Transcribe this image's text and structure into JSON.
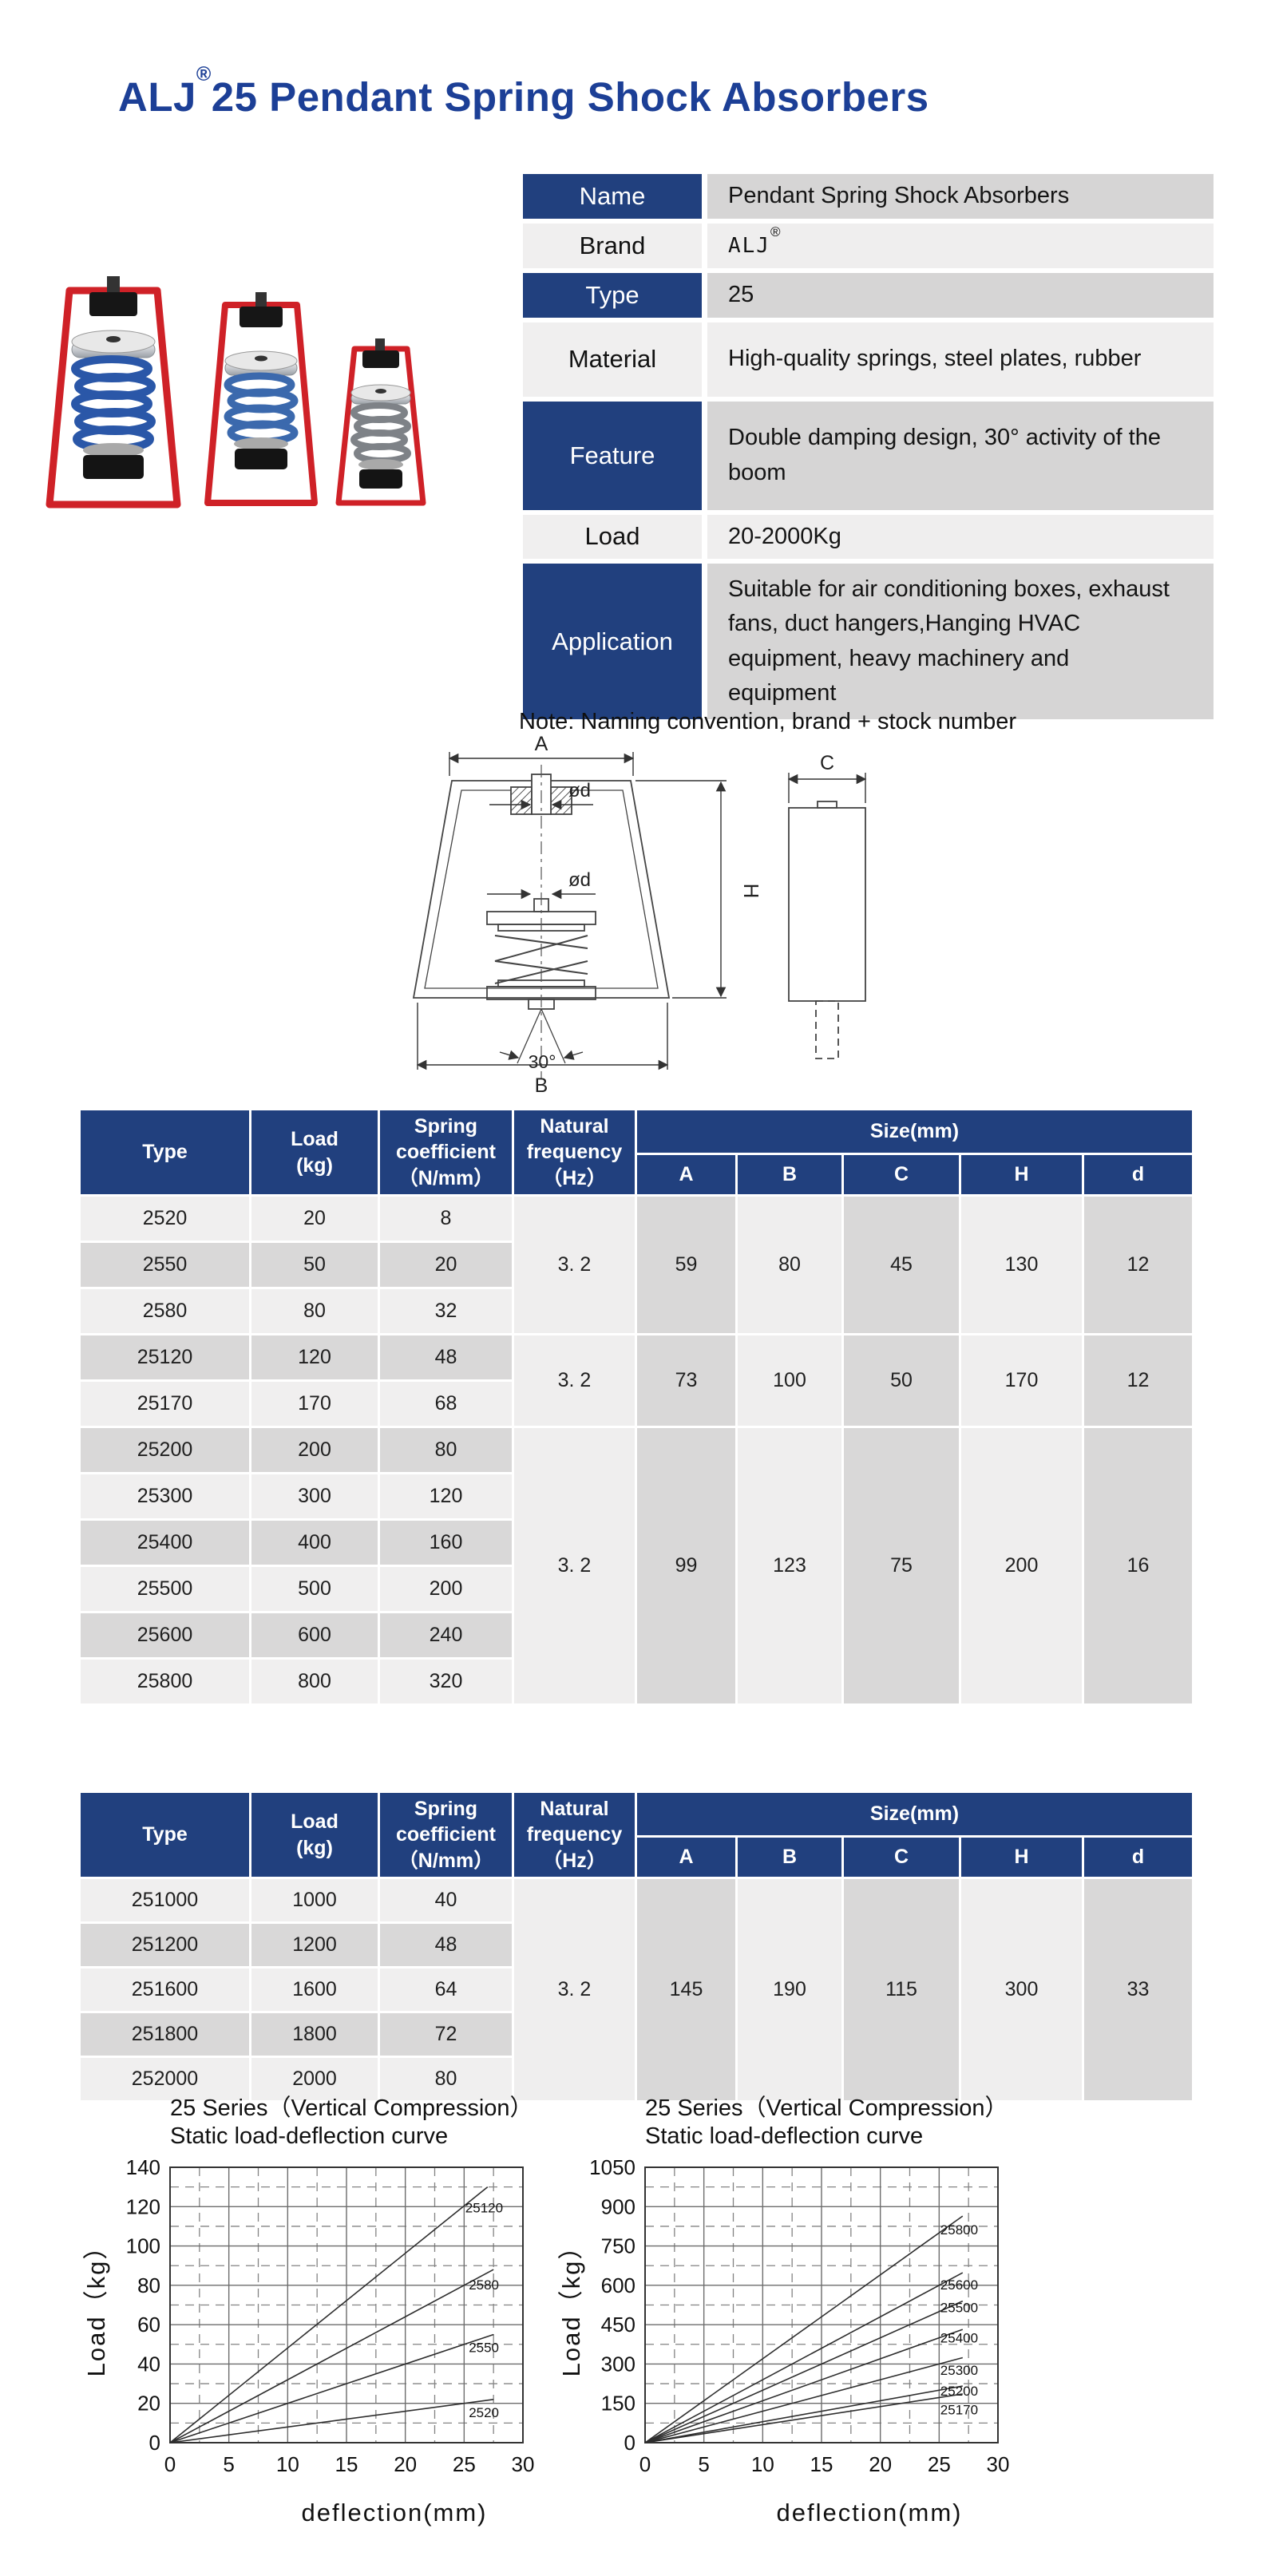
{
  "title": {
    "brand": "ALJ",
    "reg": "®",
    "rest": "25 Pendant Spring Shock Absorbers"
  },
  "info_table": {
    "rows": [
      {
        "label": "Name",
        "value": "Pendant Spring Shock Absorbers",
        "blue": true
      },
      {
        "label": "Brand",
        "value": "ALJ",
        "value_sup": "®",
        "blue": false,
        "mono": true
      },
      {
        "label": "Type",
        "value": "25",
        "blue": true
      },
      {
        "label": "Material",
        "value": "High-quality springs, steel plates, rubber",
        "blue": false
      },
      {
        "label": "Feature",
        "value": "Double damping design, 30° activity of the boom",
        "blue": true
      },
      {
        "label": "Load",
        "value": "20-2000Kg",
        "blue": false
      },
      {
        "label": "Application",
        "value": "Suitable for air conditioning boxes, exhaust fans, duct hangers,Hanging HVAC equipment, heavy machinery and equipment",
        "blue": true
      }
    ]
  },
  "note": "Note: Naming convention, brand + stock number",
  "diagram": {
    "dim_a": "A",
    "dim_d_top": "ød",
    "dim_d_mid": "ød",
    "dim_h": "H",
    "dim_angle": "30°",
    "dim_b": "B",
    "dim_c": "C"
  },
  "spec_tables": [
    {
      "headers": {
        "type": "Type",
        "load": "Load\n(kg)",
        "coeff": "Spring\ncoefficient\n（N/mm）",
        "freq": "Natural\nfrequency\n（Hz）",
        "size": "Size(mm)",
        "size_cols": [
          "A",
          "B",
          "C",
          "H",
          "d"
        ]
      },
      "rows": [
        {
          "type": "2520",
          "load": "20",
          "coeff": "8"
        },
        {
          "type": "2550",
          "load": "50",
          "coeff": "20"
        },
        {
          "type": "2580",
          "load": "80",
          "coeff": "32"
        },
        {
          "type": "25120",
          "load": "120",
          "coeff": "48"
        },
        {
          "type": "25170",
          "load": "170",
          "coeff": "68"
        },
        {
          "type": "25200",
          "load": "200",
          "coeff": "80"
        },
        {
          "type": "25300",
          "load": "300",
          "coeff": "120"
        },
        {
          "type": "25400",
          "load": "400",
          "coeff": "160"
        },
        {
          "type": "25500",
          "load": "500",
          "coeff": "200"
        },
        {
          "type": "25600",
          "load": "600",
          "coeff": "240"
        },
        {
          "type": "25800",
          "load": "800",
          "coeff": "320"
        }
      ],
      "groups": [
        {
          "start": 0,
          "count": 3,
          "freq": "3. 2",
          "size": [
            "59",
            "80",
            "45",
            "130",
            "12"
          ]
        },
        {
          "start": 3,
          "count": 2,
          "freq": "3. 2",
          "size": [
            "73",
            "100",
            "50",
            "170",
            "12"
          ]
        },
        {
          "start": 5,
          "count": 6,
          "freq": "3. 2",
          "size": [
            "99",
            "123",
            "75",
            "200",
            "16"
          ]
        }
      ]
    },
    {
      "headers": {
        "type": "Type",
        "load": "Load\n(kg)",
        "coeff": "Spring\ncoefficient\n（N/mm）",
        "freq": "Natural\nfrequency\n（Hz）",
        "size": "Size(mm)",
        "size_cols": [
          "A",
          "B",
          "C",
          "H",
          "d"
        ]
      },
      "rows": [
        {
          "type": "251000",
          "load": "1000",
          "coeff": "40"
        },
        {
          "type": "251200",
          "load": "1200",
          "coeff": "48"
        },
        {
          "type": "251600",
          "load": "1600",
          "coeff": "64"
        },
        {
          "type": "251800",
          "load": "1800",
          "coeff": "72"
        },
        {
          "type": "252000",
          "load": "2000",
          "coeff": "80"
        }
      ],
      "groups": [
        {
          "start": 0,
          "count": 5,
          "freq": "3. 2",
          "size": [
            "145",
            "190",
            "115",
            "300",
            "33"
          ]
        }
      ]
    }
  ],
  "chart_data": [
    {
      "type": "line",
      "title": "25 Series（Vertical Compression）",
      "subtitle": "Static load-deflection curve",
      "xlabel": "deflection(mm)",
      "ylabel": "Load（kg）",
      "xlim": [
        0,
        30
      ],
      "ylim": [
        0,
        140
      ],
      "x_major": 5,
      "x_minor": 2.5,
      "y_major": 20,
      "y_minor": 10,
      "grid": true,
      "legend": "inline-labels",
      "series": [
        {
          "name": "25120",
          "points": [
            [
              0,
              0
            ],
            [
              27,
              130
            ]
          ],
          "label_at": [
            25.1,
            117
          ]
        },
        {
          "name": "2580",
          "points": [
            [
              0,
              0
            ],
            [
              27.5,
              88
            ]
          ],
          "label_at": [
            25.4,
            78
          ]
        },
        {
          "name": "2550",
          "points": [
            [
              0,
              0
            ],
            [
              27.5,
              55
            ]
          ],
          "label_at": [
            25.4,
            46
          ]
        },
        {
          "name": "2520",
          "points": [
            [
              0,
              0
            ],
            [
              27.5,
              22
            ]
          ],
          "label_at": [
            25.4,
            13
          ]
        }
      ]
    },
    {
      "type": "line",
      "title": "25 Series（Vertical Compression）",
      "subtitle": "Static load-deflection curve",
      "xlabel": "deflection(mm)",
      "ylabel": "Load（kg）",
      "xlim": [
        0,
        30
      ],
      "ylim": [
        0,
        1050
      ],
      "x_major": 5,
      "x_minor": 2.5,
      "y_major": 150,
      "y_minor": 75,
      "grid": true,
      "legend": "inline-labels",
      "series": [
        {
          "name": "25800",
          "points": [
            [
              0,
              0
            ],
            [
              27,
              864
            ]
          ],
          "label_at": [
            25.1,
            795
          ]
        },
        {
          "name": "25600",
          "points": [
            [
              0,
              0
            ],
            [
              27,
              648
            ]
          ],
          "label_at": [
            25.1,
            585
          ]
        },
        {
          "name": "25500",
          "points": [
            [
              0,
              0
            ],
            [
              27,
              540
            ]
          ],
          "label_at": [
            25.1,
            497
          ]
        },
        {
          "name": "25400",
          "points": [
            [
              0,
              0
            ],
            [
              27,
              432
            ]
          ],
          "label_at": [
            25.1,
            382
          ]
        },
        {
          "name": "25300",
          "points": [
            [
              0,
              0
            ],
            [
              27,
              324
            ]
          ],
          "label_at": [
            25.1,
            258
          ]
        },
        {
          "name": "25200",
          "points": [
            [
              0,
              0
            ],
            [
              27,
              216
            ]
          ],
          "label_at": [
            25.1,
            180
          ]
        },
        {
          "name": "25170",
          "points": [
            [
              0,
              0
            ],
            [
              27,
              186
            ]
          ],
          "label_at": [
            25.1,
            108
          ]
        }
      ]
    }
  ]
}
